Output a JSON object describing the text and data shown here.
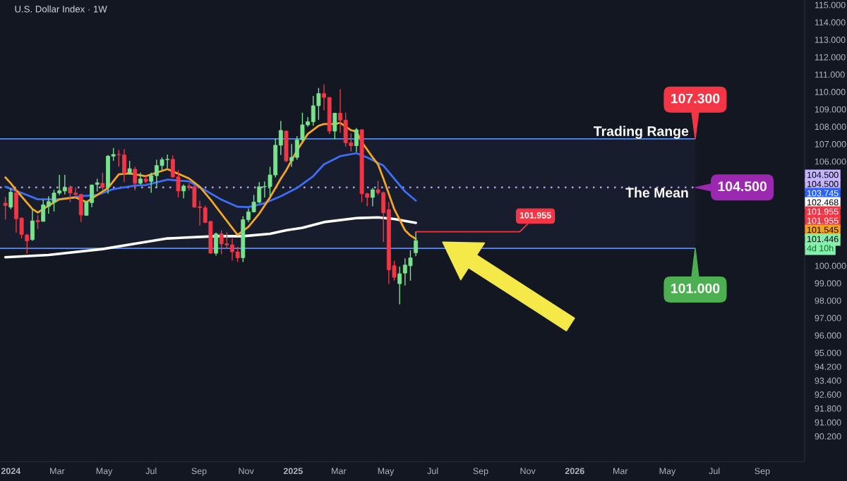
{
  "chart_data": {
    "type": "candlestick",
    "title": "U.S. Dollar Index · 1W",
    "x": [
      "2023-12-25",
      "2024-01-01",
      "2024-01-08",
      "2024-01-15",
      "2024-01-22",
      "2024-01-29",
      "2024-02-05",
      "2024-02-12",
      "2024-02-19",
      "2024-02-26",
      "2024-03-04",
      "2024-03-11",
      "2024-03-18",
      "2024-03-25",
      "2024-04-01",
      "2024-04-08",
      "2024-04-15",
      "2024-04-22",
      "2024-04-29",
      "2024-05-06",
      "2024-05-13",
      "2024-05-20",
      "2024-05-27",
      "2024-06-03",
      "2024-06-10",
      "2024-06-17",
      "2024-06-24",
      "2024-07-01",
      "2024-07-08",
      "2024-07-15",
      "2024-07-22",
      "2024-07-29",
      "2024-08-05",
      "2024-08-12",
      "2024-08-19",
      "2024-08-26",
      "2024-09-02",
      "2024-09-09",
      "2024-09-16",
      "2024-09-23",
      "2024-09-30",
      "2024-10-07",
      "2024-10-14",
      "2024-10-21",
      "2024-10-28",
      "2024-11-04",
      "2024-11-11",
      "2024-11-18",
      "2024-11-25",
      "2024-12-02",
      "2024-12-09",
      "2024-12-16",
      "2024-12-23",
      "2024-12-30",
      "2025-01-06",
      "2025-01-13",
      "2025-01-20",
      "2025-01-27",
      "2025-02-03",
      "2025-02-10",
      "2025-02-17",
      "2025-02-24",
      "2025-03-03",
      "2025-03-10",
      "2025-03-17",
      "2025-03-24",
      "2025-03-31",
      "2025-04-07",
      "2025-04-14",
      "2025-04-21",
      "2025-04-28",
      "2025-05-05",
      "2025-05-12",
      "2025-05-19",
      "2025-05-26",
      "2025-06-02",
      "2025-06-09"
    ],
    "ohlc": [
      [
        103.6,
        103.96,
        102.65,
        103.46
      ],
      [
        103.37,
        104.47,
        103.26,
        104.23
      ],
      [
        104.2,
        104.4,
        101.9,
        102.7
      ],
      [
        102.74,
        102.78,
        101.57,
        101.8
      ],
      [
        101.77,
        101.84,
        100.7,
        101.43
      ],
      [
        101.5,
        103.26,
        101.43,
        102.58
      ],
      [
        102.6,
        102.92,
        102.11,
        102.53
      ],
      [
        102.55,
        103.8,
        102.55,
        103.5
      ],
      [
        103.42,
        104.0,
        102.99,
        103.69
      ],
      [
        103.66,
        104.37,
        103.12,
        104.18
      ],
      [
        104.18,
        105.22,
        104.07,
        104.31
      ],
      [
        104.3,
        105.22,
        104.1,
        104.51
      ],
      [
        104.51,
        104.61,
        103.66,
        104.18
      ],
      [
        104.18,
        104.5,
        103.93,
        104.1
      ],
      [
        104.1,
        104.14,
        102.52,
        102.92
      ],
      [
        102.9,
        103.73,
        102.88,
        103.66
      ],
      [
        103.63,
        104.68,
        103.37,
        104.64
      ],
      [
        104.68,
        105.0,
        104.27,
        104.77
      ],
      [
        104.74,
        105.35,
        104.34,
        104.5
      ],
      [
        104.54,
        106.37,
        104.14,
        106.3
      ],
      [
        106.3,
        106.77,
        106.03,
        106.4
      ],
      [
        106.4,
        106.66,
        105.7,
        106.38
      ],
      [
        106.37,
        106.7,
        104.81,
        105.31
      ],
      [
        105.3,
        106.03,
        105.22,
        105.58
      ],
      [
        105.55,
        105.69,
        104.34,
        104.74
      ],
      [
        104.74,
        105.35,
        104.68,
        104.99
      ],
      [
        104.99,
        105.15,
        104.74,
        104.85
      ],
      [
        104.85,
        105.35,
        104.2,
        105.18
      ],
      [
        105.18,
        106.1,
        104.47,
        105.76
      ],
      [
        105.76,
        106.23,
        105.49,
        106.1
      ],
      [
        106.1,
        106.39,
        105.62,
        106.12
      ],
      [
        106.12,
        106.34,
        105.04,
        105.11
      ],
      [
        105.11,
        105.5,
        103.93,
        104.3
      ],
      [
        104.3,
        104.68,
        103.87,
        104.58
      ],
      [
        104.58,
        104.74,
        104.34,
        104.5
      ],
      [
        104.54,
        104.61,
        103.33,
        103.37
      ],
      [
        103.39,
        103.73,
        102.31,
        103.34
      ],
      [
        103.33,
        103.46,
        102.45,
        102.49
      ],
      [
        102.55,
        102.57,
        100.69,
        100.72
      ],
      [
        100.72,
        101.91,
        100.58,
        101.84
      ],
      [
        101.84,
        102.04,
        100.66,
        101.26
      ],
      [
        101.26,
        101.93,
        100.96,
        101.2
      ],
      [
        101.2,
        101.57,
        100.3,
        100.8
      ],
      [
        100.8,
        101.1,
        100.22,
        100.46
      ],
      [
        100.46,
        102.85,
        100.22,
        102.65
      ],
      [
        102.65,
        103.3,
        102.51,
        103.1
      ],
      [
        103.1,
        104.07,
        103.06,
        103.66
      ],
      [
        103.66,
        104.81,
        103.6,
        104.54
      ],
      [
        104.54,
        104.85,
        103.93,
        104.56
      ],
      [
        104.56,
        105.69,
        104.0,
        105.22
      ],
      [
        105.22,
        107.31,
        105.08,
        106.93
      ],
      [
        106.93,
        108.33,
        106.37,
        107.78
      ],
      [
        107.74,
        107.78,
        105.96,
        106.03
      ],
      [
        106.03,
        107.0,
        105.69,
        106.23
      ],
      [
        106.23,
        107.45,
        106.1,
        107.24
      ],
      [
        107.24,
        108.8,
        107.17,
        108.1
      ],
      [
        108.1,
        108.55,
        107.99,
        108.28
      ],
      [
        108.28,
        109.77,
        108.05,
        109.2
      ],
      [
        109.2,
        110.22,
        108.39,
        109.9
      ],
      [
        109.9,
        110.42,
        108.93,
        109.68
      ],
      [
        109.68,
        109.68,
        107.58,
        107.74
      ],
      [
        107.74,
        108.8,
        107.28,
        108.77
      ],
      [
        108.77,
        110.15,
        107.65,
        108.37
      ],
      [
        108.37,
        108.8,
        106.84,
        107.07
      ],
      [
        107.07,
        107.61,
        106.57,
        106.9
      ],
      [
        106.9,
        107.92,
        106.53,
        107.82
      ],
      [
        107.82,
        107.85,
        103.66,
        104.14
      ],
      [
        104.14,
        104.2,
        103.42,
        103.93
      ],
      [
        103.93,
        104.47,
        103.42,
        104.37
      ],
      [
        104.37,
        104.88,
        104.07,
        104.2
      ],
      [
        104.2,
        104.27,
        101.36,
        103.05
      ],
      [
        103.23,
        103.66,
        98.96,
        99.77
      ],
      [
        100.0,
        100.29,
        99.14,
        99.34
      ],
      [
        98.97,
        99.95,
        97.78,
        99.54
      ],
      [
        99.58,
        100.42,
        98.86,
        100.04
      ],
      [
        100.0,
        100.89,
        99.14,
        100.45
      ],
      [
        100.75,
        101.955,
        100.55,
        101.446
      ]
    ],
    "colors": [
      "#f23645",
      "#79e28d",
      "#f23645",
      "#f23645",
      "#f23645",
      "#79e28d",
      "#f23645",
      "#79e28d",
      "#79e28d",
      "#79e28d",
      "#79e28d",
      "#79e28d",
      "#f23645",
      "#f23645",
      "#f23645",
      "#79e28d",
      "#79e28d",
      "#79e28d",
      "#f23645",
      "#79e28d",
      "#79e28d",
      "#f23645",
      "#f23645",
      "#79e28d",
      "#f23645",
      "#79e28d",
      "#f23645",
      "#79e28d",
      "#79e28d",
      "#79e28d",
      "#79e28d",
      "#f23645",
      "#f23645",
      "#79e28d",
      "#f23645",
      "#f23645",
      "#f23645",
      "#f23645",
      "#f23645",
      "#79e28d",
      "#f23645",
      "#f23645",
      "#f23645",
      "#f23645",
      "#79e28d",
      "#79e28d",
      "#79e28d",
      "#79e28d",
      "#79e28d",
      "#79e28d",
      "#79e28d",
      "#79e28d",
      "#f23645",
      "#79e28d",
      "#79e28d",
      "#79e28d",
      "#79e28d",
      "#79e28d",
      "#79e28d",
      "#f23645",
      "#f23645",
      "#79e28d",
      "#f23645",
      "#f23645",
      "#f23645",
      "#79e28d",
      "#f23645",
      "#f23645",
      "#79e28d",
      "#f23645",
      "#f23645",
      "#f23645",
      "#f23645",
      "#79e28d",
      "#79e28d",
      "#79e28d",
      "#79e28d"
    ],
    "series": [
      {
        "type": "line",
        "color": "#ffffff",
        "x": [
          "2023-12-25",
          "2024-02-19",
          "2024-04-29",
          "2024-06-24",
          "2024-07-22",
          "2024-09-23",
          "2024-10-28",
          "2024-12-02",
          "2024-12-23",
          "2025-01-13",
          "2025-02-10",
          "2025-03-24",
          "2025-04-21",
          "2025-05-12",
          "2025-06-09"
        ],
        "values": [
          100.49,
          100.62,
          100.96,
          101.37,
          101.57,
          101.7,
          101.7,
          101.84,
          102.04,
          102.18,
          102.51,
          102.74,
          102.78,
          102.69,
          102.468
        ]
      },
      {
        "type": "line",
        "color": "#3d6ef5",
        "x": [
          "2023-12-25",
          "2024-01-22",
          "2024-02-05",
          "2024-03-04",
          "2024-04-01",
          "2024-04-22",
          "2024-05-13",
          "2024-06-10",
          "2024-06-24",
          "2024-07-22",
          "2024-08-19",
          "2024-09-09",
          "2024-09-30",
          "2024-10-21",
          "2024-11-04",
          "2024-11-25",
          "2024-12-16",
          "2025-01-06",
          "2025-01-27",
          "2025-02-10",
          "2025-03-03",
          "2025-03-24",
          "2025-04-07",
          "2025-04-28",
          "2025-05-12",
          "2025-05-26",
          "2025-06-09"
        ],
        "values": [
          104.54,
          104.07,
          103.82,
          103.82,
          104.0,
          104.07,
          104.41,
          104.61,
          104.64,
          104.95,
          104.85,
          104.34,
          103.8,
          103.39,
          103.37,
          103.6,
          104.0,
          104.47,
          105.15,
          105.83,
          106.3,
          106.47,
          106.23,
          105.76,
          105.01,
          104.27,
          103.745
        ]
      },
      {
        "type": "line",
        "color": "#f5a623",
        "x": [
          "2023-12-25",
          "2024-01-01",
          "2024-01-08",
          "2024-01-29",
          "2024-02-05",
          "2024-02-19",
          "2024-03-04",
          "2024-03-25",
          "2024-04-08",
          "2024-04-22",
          "2024-05-06",
          "2024-05-20",
          "2024-06-03",
          "2024-06-24",
          "2024-07-22",
          "2024-08-19",
          "2024-09-02",
          "2024-09-16",
          "2024-09-30",
          "2024-10-21",
          "2024-11-04",
          "2024-11-18",
          "2024-12-02",
          "2024-12-16",
          "2024-12-23",
          "2025-01-06",
          "2025-01-20",
          "2025-02-03",
          "2025-02-10",
          "2025-02-24",
          "2025-03-03",
          "2025-03-17",
          "2025-03-24",
          "2025-03-31",
          "2025-04-14",
          "2025-04-21",
          "2025-04-28",
          "2025-05-12",
          "2025-05-26",
          "2025-06-02",
          "2025-06-09"
        ],
        "values": [
          105.08,
          104.74,
          104.34,
          103.26,
          103.06,
          103.46,
          103.82,
          103.93,
          103.66,
          104.07,
          104.47,
          105.26,
          105.31,
          105.15,
          105.56,
          105.02,
          104.54,
          103.8,
          102.99,
          101.77,
          102.24,
          102.99,
          103.93,
          105.01,
          105.49,
          106.63,
          107.58,
          108.05,
          108.15,
          108.15,
          108.22,
          107.79,
          107.72,
          107.11,
          106.23,
          105.83,
          105.01,
          103.26,
          102.04,
          101.74,
          101.545
        ]
      }
    ],
    "bands": [
      {
        "axis": "y",
        "from": 101,
        "to": 107.3,
        "color": "#171d2c"
      }
    ],
    "ref_lines": [
      {
        "axis": "y",
        "value": 107.3,
        "label": "107.300",
        "color": "#5b8def"
      },
      {
        "axis": "y",
        "value": 104.5,
        "label": "104.500",
        "color": "#b39ddb",
        "line_style": "dotted"
      },
      {
        "axis": "y",
        "value": 101,
        "label": "101.000",
        "color": "#5b8def"
      }
    ],
    "annotations": [
      {
        "text": "101.955",
        "x": "2025-06-09",
        "y": 101.955
      },
      {
        "text": "Trading Range",
        "y": 107.3
      },
      {
        "text": "The Mean",
        "y": 104.5
      },
      "104.500",
      "104.500",
      "103.745",
      "102.468",
      "101.955",
      "101.955",
      "101.545",
      "101.446",
      "4d 10h"
    ],
    "xlim": [
      "2023-12-18",
      "2026-10-26"
    ],
    "xticks": [
      {
        "value": "2024-01-01",
        "label": "2024"
      },
      {
        "value": "2024-03-01",
        "label": "Mar"
      },
      {
        "value": "2024-05-01",
        "label": "May"
      },
      {
        "value": "2024-07-01",
        "label": "Jul"
      },
      {
        "value": "2024-09-01",
        "label": "Sep"
      },
      {
        "value": "2024-11-01",
        "label": "Nov"
      },
      {
        "value": "2025-01-01",
        "label": "2025"
      },
      {
        "value": "2025-03-01",
        "label": "Mar"
      },
      {
        "value": "2025-05-01",
        "label": "May"
      },
      {
        "value": "2025-07-01",
        "label": "Jul"
      },
      {
        "value": "2025-09-01",
        "label": "Sep"
      },
      {
        "value": "2025-11-01",
        "label": "Nov"
      },
      {
        "value": "2026-01-01",
        "label": "2026"
      },
      {
        "value": "2026-03-01",
        "label": "Mar"
      },
      {
        "value": "2026-05-01",
        "label": "May"
      },
      {
        "value": "2026-07-01",
        "label": "Jul"
      },
      {
        "value": "2026-09-01",
        "label": "Sep"
      }
    ],
    "ylim": [
      88.73,
      115.28
    ],
    "yticks": [
      {
        "value": 115,
        "label": "115.000"
      },
      {
        "value": 114,
        "label": "114.000"
      },
      {
        "value": 113,
        "label": "113.000"
      },
      {
        "value": 112,
        "label": "112.000"
      },
      {
        "value": 111,
        "label": "111.000"
      },
      {
        "value": 110,
        "label": "110.000"
      },
      {
        "value": 109,
        "label": "109.000"
      },
      {
        "value": 108,
        "label": "108.000"
      },
      {
        "value": 107,
        "label": "107.000"
      },
      {
        "value": 106,
        "label": "106.000"
      },
      {
        "value": 100,
        "label": "100.000"
      },
      {
        "value": 99,
        "label": "99.000"
      },
      {
        "value": 98,
        "label": "98.000"
      },
      {
        "value": 97,
        "label": "97.000"
      },
      {
        "value": 96,
        "label": "96.000"
      },
      {
        "value": 95,
        "label": "95.000"
      },
      {
        "value": 94.2,
        "label": "94.200"
      },
      {
        "value": 93.4,
        "label": "93.400"
      },
      {
        "value": 92.6,
        "label": "92.600"
      },
      {
        "value": 91.8,
        "label": "91.800"
      },
      {
        "value": 91.0,
        "label": "91.000"
      },
      {
        "value": 90.2,
        "label": "90.200"
      }
    ],
    "grid": false,
    "legend": false
  }
}
